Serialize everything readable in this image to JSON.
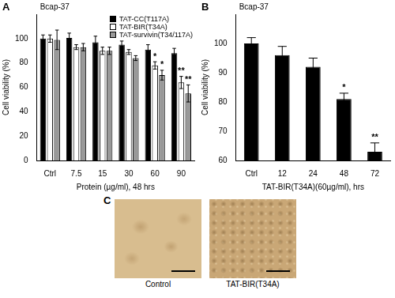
{
  "chart_data": [
    {
      "panel": "A",
      "type": "bar",
      "subtitle": "Bcap-37",
      "x_label": "Protein (µg/ml), 48 hrs",
      "y_label": "Cell viability (%)",
      "categories": [
        "Ctrl",
        "7.5",
        "15",
        "30",
        "60",
        "90"
      ],
      "series": [
        {
          "name": "TAT-CC(T117A)",
          "color": "#000000",
          "values": [
            100,
            100.5,
            97,
            95,
            91,
            88
          ],
          "errors": [
            3,
            4,
            5,
            3,
            4,
            4
          ]
        },
        {
          "name": "TAT-BIR(T34A)",
          "color": "#ffffff",
          "values": [
            100,
            93,
            90,
            89,
            78,
            64
          ],
          "errors": [
            3,
            2,
            3,
            2,
            3,
            5
          ]
        },
        {
          "name": "TAT-survivin(T34/117A)",
          "color": "#999999",
          "values": [
            99,
            93,
            90,
            84,
            70,
            55
          ],
          "errors": [
            8,
            3,
            3,
            2,
            4,
            7
          ]
        }
      ],
      "ylim": [
        0,
        120
      ],
      "yticks": [
        0,
        20,
        40,
        60,
        80,
        100
      ],
      "grid": false,
      "legend": "upper right",
      "annotations": [
        {
          "category": "60",
          "series": "TAT-BIR(T34A)",
          "text": "*"
        },
        {
          "category": "60",
          "series": "TAT-survivin(T34/117A)",
          "text": "*"
        },
        {
          "category": "90",
          "series": "TAT-BIR(T34A)",
          "text": "**"
        },
        {
          "category": "90",
          "series": "TAT-survivin(T34/117A)",
          "text": "**"
        }
      ]
    },
    {
      "panel": "B",
      "type": "bar",
      "subtitle": "Bcap-37",
      "x_label": "TAT-BIR(T34A)(60µg/ml), hrs",
      "y_label": "Cell viability (%)",
      "categories": [
        "Ctrl",
        "12",
        "24",
        "48",
        "72"
      ],
      "values": [
        100,
        96,
        92,
        81,
        63
      ],
      "errors": [
        2,
        3,
        3,
        2,
        3
      ],
      "color": "#000000",
      "ylim": [
        60,
        110
      ],
      "yticks": [
        60,
        70,
        80,
        90,
        100
      ],
      "grid": false,
      "annotations": [
        {
          "category": "48",
          "text": "*"
        },
        {
          "category": "72",
          "text": "**"
        }
      ]
    }
  ],
  "images": {
    "panel": "C",
    "items": [
      {
        "label": "Control"
      },
      {
        "label": "TAT-BIR(T34A)"
      }
    ]
  }
}
